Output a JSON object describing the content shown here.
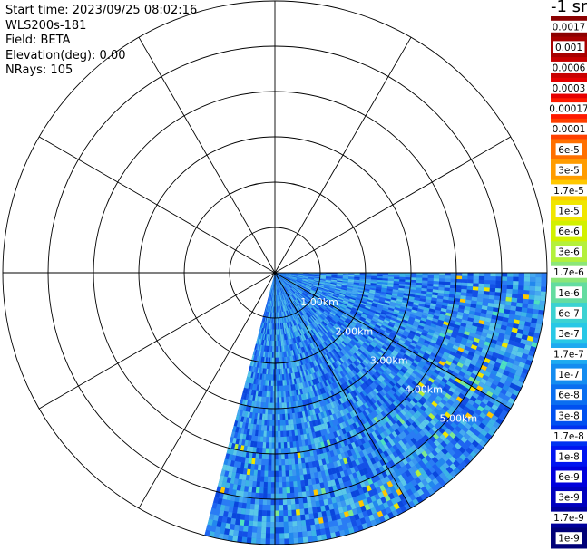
{
  "header": {
    "start_time": "Start time: 2023/09/25 08:02:16",
    "instrument": "WLS200s-181",
    "field": "Field: BETA",
    "elevation": "Elevation(deg): 0.00",
    "nrays": "NRays: 105"
  },
  "colorbar": {
    "unit_label": "-1 sr",
    "ticks": [
      "0.0017",
      "0.001",
      "0.0006",
      "0.0003",
      "0.00017",
      "0.0001",
      "6e-5",
      "3e-5",
      "1.7e-5",
      "1e-5",
      "6e-6",
      "3e-6",
      "1.7e-6",
      "1e-6",
      "6e-7",
      "3e-7",
      "1.7e-7",
      "1e-7",
      "6e-8",
      "3e-8",
      "1.7e-8",
      "1e-8",
      "6e-9",
      "3e-9",
      "1.7e-9",
      "1e-9"
    ],
    "colors": [
      "#8b0000",
      "#a80000",
      "#c80000",
      "#e60000",
      "#ff1a00",
      "#ff4000",
      "#ff7000",
      "#ff9c00",
      "#ffc800",
      "#f0e600",
      "#d2f000",
      "#b4f03c",
      "#8ce678",
      "#64dca0",
      "#3cd2d2",
      "#28c8e6",
      "#1eaaf0",
      "#148cf0",
      "#0a6ef0",
      "#0050f0",
      "#0032f0",
      "#0014f0",
      "#0000dc",
      "#0000be",
      "#00009b",
      "#000078"
    ]
  },
  "chart_data": {
    "type": "heatmap",
    "title": "",
    "range_rings_km": [
      1,
      2,
      3,
      4,
      5,
      6
    ],
    "range_ring_labels": [
      "1.00km",
      "2.00km",
      "3.00km",
      "4.00km",
      "5.00km"
    ],
    "spoke_azimuths_deg": [
      0,
      30,
      60,
      90,
      120,
      150,
      180,
      210,
      240,
      270,
      300,
      330
    ],
    "scan_sector_deg": [
      90,
      195
    ],
    "nrays": 105
  }
}
